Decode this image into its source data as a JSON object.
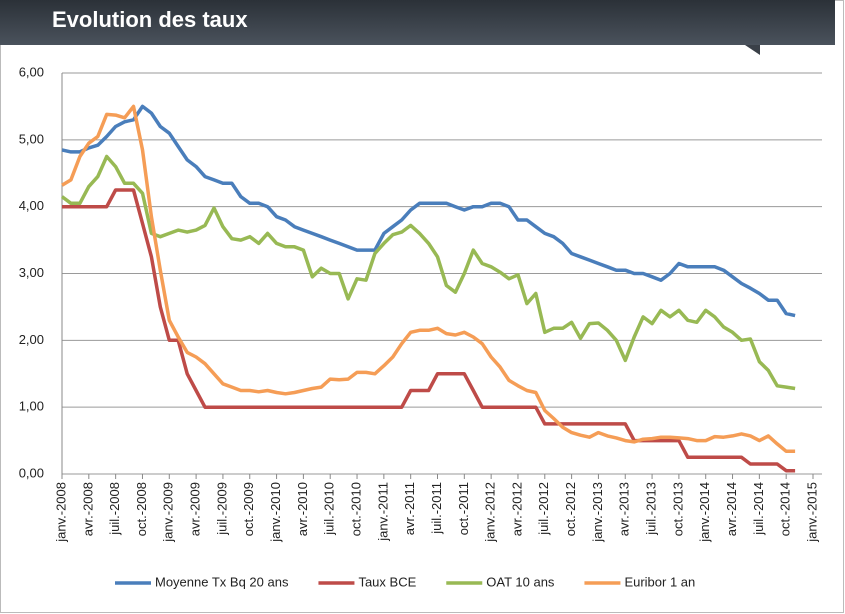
{
  "chart_data": {
    "type": "line",
    "title": "Evolution des taux",
    "categories": [
      "janv.-2008",
      null,
      null,
      "avr.-2008",
      null,
      null,
      "juil.-2008",
      null,
      null,
      "oct.-2008",
      null,
      null,
      "janv.-2009",
      null,
      null,
      "avr.-2009",
      null,
      null,
      "juil.-2009",
      null,
      null,
      "oct.-2009",
      null,
      null,
      "janv.-2010",
      null,
      null,
      "avr.-2010",
      null,
      null,
      "juil.-2010",
      null,
      null,
      "oct.-2010",
      null,
      null,
      "janv.-2011",
      null,
      null,
      "avr.-2011",
      null,
      null,
      "juil.-2011",
      null,
      null,
      "oct.-2011",
      null,
      null,
      "janv.-2012",
      null,
      null,
      "avr.-2012",
      null,
      null,
      "juil.-2012",
      null,
      null,
      "oct.-2012",
      null,
      null,
      "janv.-2013",
      null,
      null,
      "avr.-2013",
      null,
      null,
      "juil.-2013",
      null,
      null,
      "oct.-2013",
      null,
      null,
      "janv.-2014",
      null,
      null,
      "avr.-2014",
      null,
      null,
      "juil.-2014",
      null,
      null,
      "oct.-2014",
      null,
      null,
      "janv.-2015"
    ],
    "series": [
      {
        "name": "Moyenne Tx Bq 20 ans",
        "color": "#4a7ebb",
        "values": [
          4.85,
          4.82,
          4.82,
          4.88,
          4.92,
          5.05,
          5.2,
          5.27,
          5.3,
          5.5,
          5.4,
          5.2,
          5.1,
          4.9,
          4.7,
          4.6,
          4.45,
          4.4,
          4.35,
          4.35,
          4.15,
          4.05,
          4.05,
          4.0,
          3.85,
          3.8,
          3.7,
          3.65,
          3.6,
          3.55,
          3.5,
          3.45,
          3.4,
          3.35,
          3.35,
          3.35,
          3.6,
          3.7,
          3.8,
          3.95,
          4.05,
          4.05,
          4.05,
          4.05,
          4.0,
          3.95,
          4.0,
          4.0,
          4.05,
          4.05,
          4.0,
          3.8,
          3.8,
          3.7,
          3.6,
          3.55,
          3.45,
          3.3,
          3.25,
          3.2,
          3.15,
          3.1,
          3.05,
          3.05,
          3.0,
          3.0,
          2.95,
          2.9,
          3.0,
          3.15,
          3.1,
          3.1,
          3.1,
          3.1,
          3.05,
          2.95,
          2.85,
          2.78,
          2.7,
          2.6,
          2.6,
          2.4,
          2.37,
          null,
          null
        ]
      },
      {
        "name": "Taux BCE",
        "color": "#be4b48",
        "values": [
          4.0,
          4.0,
          4.0,
          4.0,
          4.0,
          4.0,
          4.25,
          4.25,
          4.25,
          3.75,
          3.25,
          2.5,
          2.0,
          2.0,
          1.5,
          1.25,
          1.0,
          1.0,
          1.0,
          1.0,
          1.0,
          1.0,
          1.0,
          1.0,
          1.0,
          1.0,
          1.0,
          1.0,
          1.0,
          1.0,
          1.0,
          1.0,
          1.0,
          1.0,
          1.0,
          1.0,
          1.0,
          1.0,
          1.0,
          1.25,
          1.25,
          1.25,
          1.5,
          1.5,
          1.5,
          1.5,
          1.25,
          1.0,
          1.0,
          1.0,
          1.0,
          1.0,
          1.0,
          1.0,
          0.75,
          0.75,
          0.75,
          0.75,
          0.75,
          0.75,
          0.75,
          0.75,
          0.75,
          0.75,
          0.5,
          0.5,
          0.5,
          0.5,
          0.5,
          0.5,
          0.25,
          0.25,
          0.25,
          0.25,
          0.25,
          0.25,
          0.25,
          0.15,
          0.15,
          0.15,
          0.15,
          0.05,
          0.05,
          null,
          null
        ]
      },
      {
        "name": "OAT 10 ans",
        "color": "#98b954",
        "values": [
          4.15,
          4.05,
          4.05,
          4.3,
          4.45,
          4.75,
          4.6,
          4.35,
          4.35,
          4.2,
          3.6,
          3.55,
          3.6,
          3.65,
          3.62,
          3.65,
          3.72,
          3.98,
          3.7,
          3.52,
          3.5,
          3.55,
          3.45,
          3.6,
          3.45,
          3.4,
          3.4,
          3.35,
          2.95,
          3.08,
          3.0,
          3.0,
          2.62,
          2.92,
          2.9,
          3.3,
          3.45,
          3.58,
          3.62,
          3.72,
          3.6,
          3.45,
          3.25,
          2.82,
          2.72,
          3.0,
          3.35,
          3.15,
          3.1,
          3.02,
          2.92,
          2.98,
          2.55,
          2.7,
          2.12,
          2.18,
          2.18,
          2.27,
          2.03,
          2.25,
          2.26,
          2.15,
          2.0,
          1.7,
          2.05,
          2.35,
          2.25,
          2.45,
          2.35,
          2.45,
          2.3,
          2.27,
          2.45,
          2.35,
          2.2,
          2.12,
          2.0,
          2.02,
          1.68,
          1.55,
          1.32,
          1.3,
          1.28,
          null,
          null
        ]
      },
      {
        "name": "Euribor 1 an",
        "color": "#f59d56",
        "values": [
          4.32,
          4.4,
          4.75,
          4.95,
          5.05,
          5.38,
          5.37,
          5.33,
          5.5,
          4.85,
          3.85,
          3.05,
          2.3,
          2.05,
          1.82,
          1.75,
          1.65,
          1.5,
          1.35,
          1.3,
          1.25,
          1.25,
          1.23,
          1.25,
          1.22,
          1.2,
          1.22,
          1.25,
          1.28,
          1.3,
          1.42,
          1.41,
          1.42,
          1.52,
          1.52,
          1.5,
          1.62,
          1.75,
          1.95,
          2.12,
          2.15,
          2.15,
          2.18,
          2.1,
          2.08,
          2.12,
          2.05,
          1.95,
          1.75,
          1.6,
          1.4,
          1.32,
          1.25,
          1.22,
          0.95,
          0.83,
          0.7,
          0.62,
          0.58,
          0.55,
          0.62,
          0.57,
          0.54,
          0.5,
          0.48,
          0.52,
          0.53,
          0.55,
          0.55,
          0.54,
          0.53,
          0.5,
          0.5,
          0.56,
          0.55,
          0.57,
          0.6,
          0.57,
          0.5,
          0.57,
          0.45,
          0.34,
          0.34,
          null,
          null
        ]
      }
    ],
    "ylim": [
      0,
      6
    ],
    "yticks": [
      {
        "value": 0,
        "label": "0,00"
      },
      {
        "value": 1,
        "label": "1,00"
      },
      {
        "value": 2,
        "label": "2,00"
      },
      {
        "value": 3,
        "label": "3,00"
      },
      {
        "value": 4,
        "label": "4,00"
      },
      {
        "value": 5,
        "label": "5,00"
      },
      {
        "value": 6,
        "label": "6,00"
      }
    ],
    "grid": true,
    "legend": "bottom"
  }
}
